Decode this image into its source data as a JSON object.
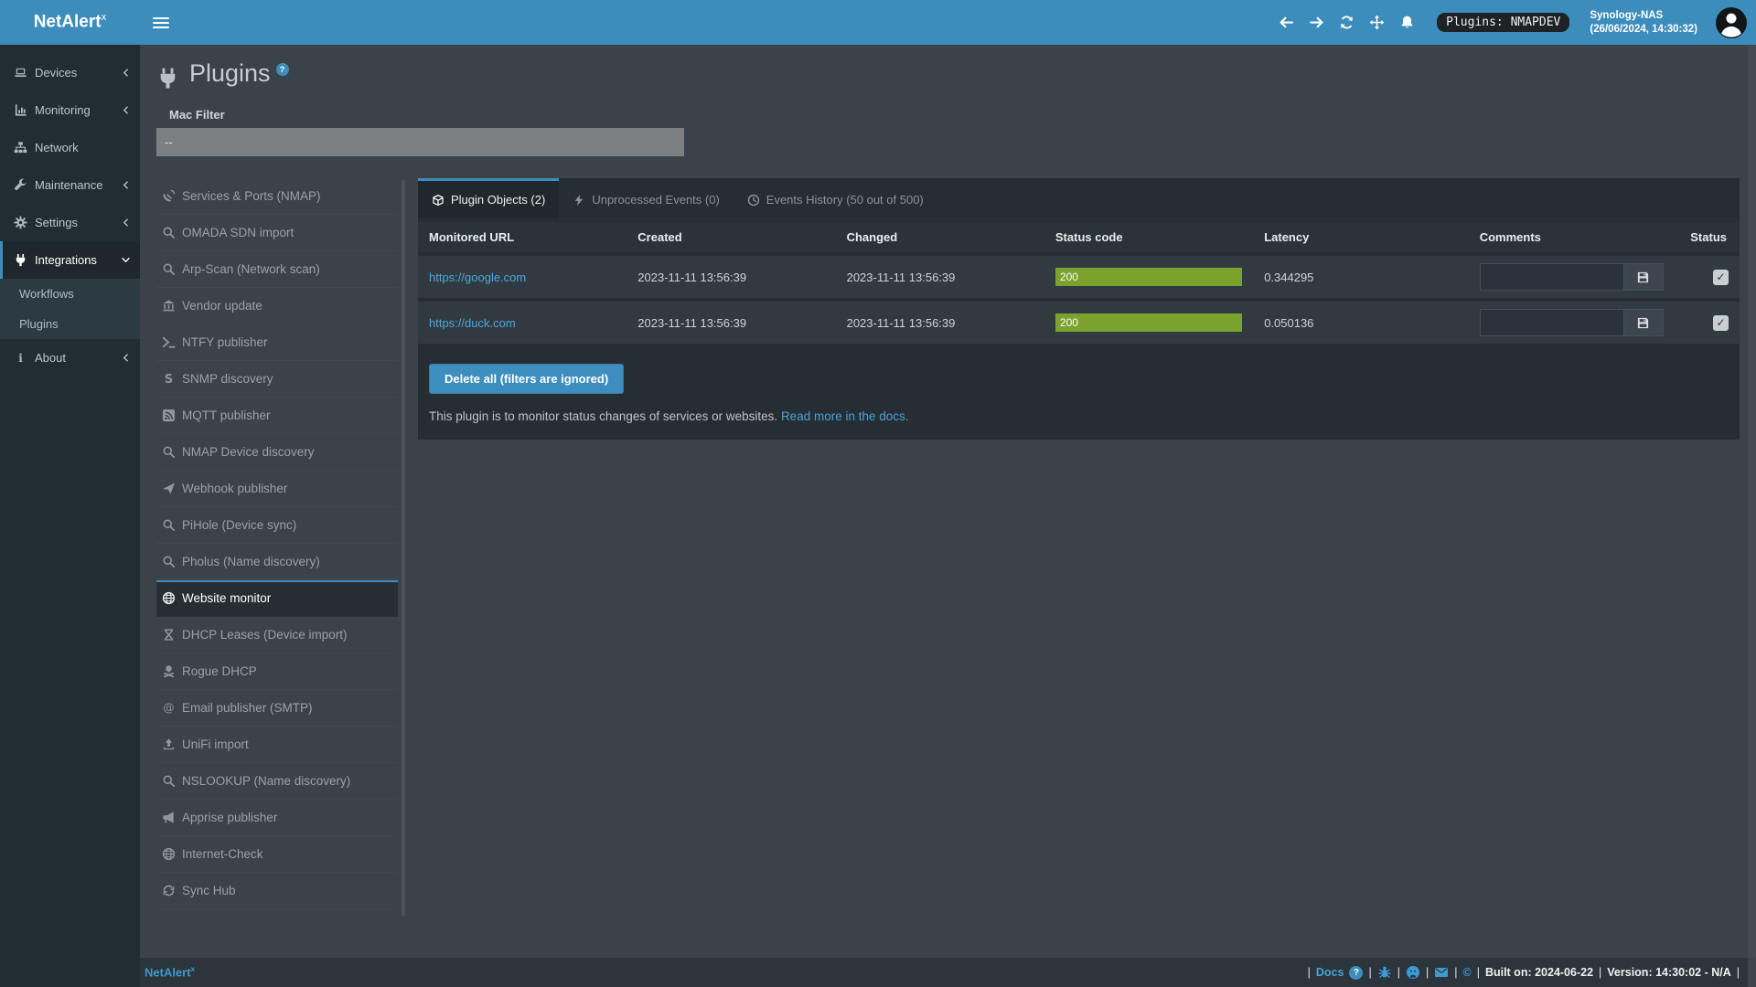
{
  "topbar": {
    "brand": "NetAlert",
    "brand_sup": "x",
    "plugins_badge": "Plugins: NMAPDEV",
    "device_name": "Synology-NAS",
    "device_time": "(26/06/2024, 14:30:32)"
  },
  "sidebar": {
    "items_top": [
      {
        "icon": "laptop",
        "label": "Devices",
        "chevron": "chevron-left"
      },
      {
        "icon": "chart",
        "label": "Monitoring",
        "chevron": "chevron-left"
      },
      {
        "icon": "sitemap",
        "label": "Network"
      },
      {
        "icon": "wrench",
        "label": "Maintenance",
        "chevron": "chevron-left"
      },
      {
        "icon": "gear",
        "label": "Settings",
        "chevron": "chevron-left"
      },
      {
        "icon": "plug",
        "label": "Integrations",
        "chevron": "chevron-down",
        "active": true
      }
    ],
    "submenu": [
      {
        "label": "Workflows"
      },
      {
        "label": "Plugins"
      }
    ],
    "items_bottom": [
      {
        "icon": "info",
        "label": "About",
        "chevron": "chevron-left"
      }
    ]
  },
  "page": {
    "title": "Plugins",
    "help": "?",
    "mac_filter_label": "Mac Filter",
    "mac_filter_value": "--"
  },
  "plugin_list": {
    "items": [
      {
        "icon": "dish",
        "label": "Services & Ports (NMAP)"
      },
      {
        "icon": "search",
        "label": "OMADA SDN import"
      },
      {
        "icon": "search",
        "label": "Arp-Scan (Network scan)"
      },
      {
        "icon": "bank",
        "label": "Vendor update"
      },
      {
        "icon": "terminal",
        "label": "NTFY publisher"
      },
      {
        "icon": "s-letter",
        "label": "SNMP discovery"
      },
      {
        "icon": "rss",
        "label": "MQTT publisher"
      },
      {
        "icon": "search",
        "label": "NMAP Device discovery"
      },
      {
        "icon": "plane",
        "label": "Webhook publisher"
      },
      {
        "icon": "search",
        "label": "PiHole (Device sync)"
      },
      {
        "icon": "search",
        "label": "Pholus (Name discovery)"
      },
      {
        "icon": "globe",
        "label": "Website monitor",
        "active": true
      },
      {
        "icon": "hourglass",
        "label": "DHCP Leases (Device import)"
      },
      {
        "icon": "skull",
        "label": "Rogue DHCP"
      },
      {
        "icon": "at",
        "label": "Email publisher (SMTP)"
      },
      {
        "icon": "upload",
        "label": "UniFi import"
      },
      {
        "icon": "search",
        "label": "NSLOOKUP (Name discovery)"
      },
      {
        "icon": "megaphone",
        "label": "Apprise publisher"
      },
      {
        "icon": "globe",
        "label": "Internet-Check"
      },
      {
        "icon": "sync",
        "label": "Sync Hub"
      }
    ]
  },
  "tabs": [
    {
      "icon": "cube",
      "label": "Plugin Objects (2)",
      "active": true
    },
    {
      "icon": "bolt",
      "label": "Unprocessed Events (0)"
    },
    {
      "icon": "clock",
      "label": "Events History (50 out of 500)"
    }
  ],
  "table": {
    "headers": [
      "Monitored URL",
      "Created",
      "Changed",
      "Status code",
      "Latency",
      "Comments",
      "Status"
    ],
    "rows": [
      {
        "url": "https://google.com",
        "created": "2023-11-11 13:56:39",
        "changed": "2023-11-11 13:56:39",
        "status_code": "200",
        "latency": "0.344295",
        "comment": "",
        "status_checked": true
      },
      {
        "url": "https://duck.com",
        "created": "2023-11-11 13:56:39",
        "changed": "2023-11-11 13:56:39",
        "status_code": "200",
        "latency": "0.050136",
        "comment": "",
        "status_checked": true
      }
    ]
  },
  "actions": {
    "delete_all": "Delete all (filters are ignored)"
  },
  "description": {
    "text": "This plugin is to monitor status changes of services or websites.",
    "link": "Read more in the docs."
  },
  "footer": {
    "brand": "NetAlert",
    "brand_sup": "x",
    "sep": "|",
    "docs": "Docs",
    "help_glyph": "?",
    "copyright": "©",
    "built": "Built on: 2024-06-22",
    "version": "Version: 14:30:02 - N/A"
  },
  "colors": {
    "accent": "#3c8dbc",
    "status_ok_green": "#7aa22c",
    "link": "#4ea7dc"
  }
}
